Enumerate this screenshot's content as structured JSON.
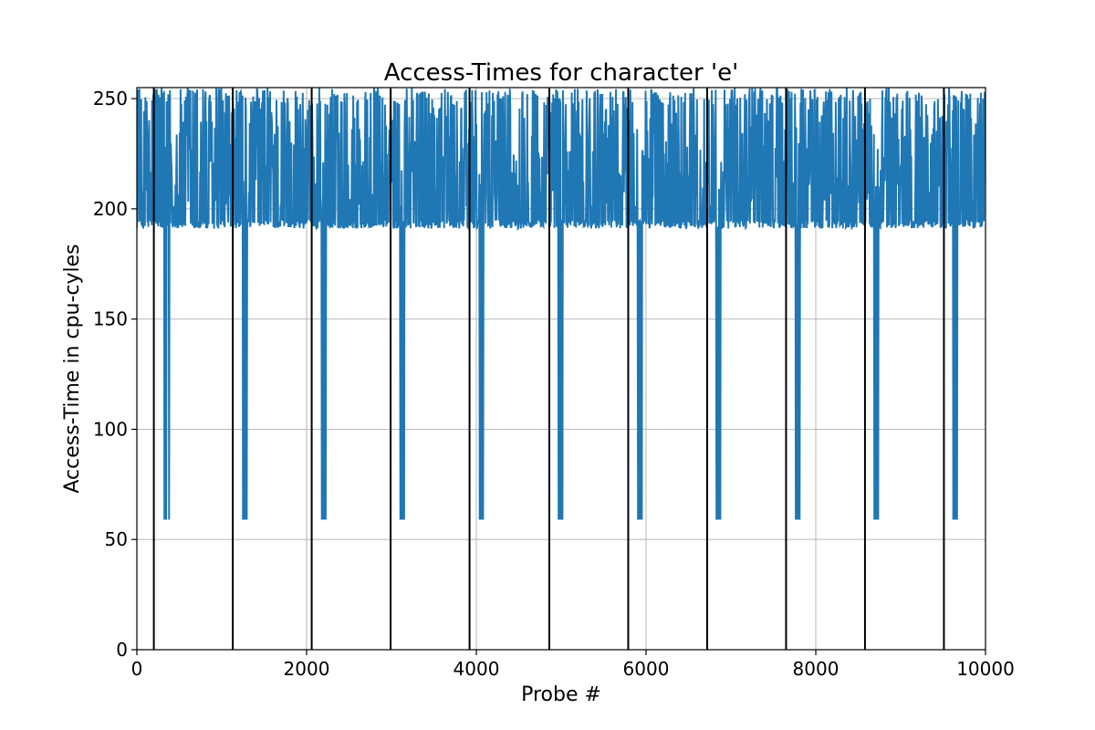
{
  "chart_data": {
    "type": "line",
    "title": "Access-Times for character 'e'",
    "xlabel": "Probe #",
    "ylabel": "Access-Time in cpu-cyles",
    "xlim": [
      0,
      10000
    ],
    "ylim": [
      0,
      255
    ],
    "x_ticks": [
      0,
      2000,
      4000,
      6000,
      8000,
      10000
    ],
    "y_ticks": [
      0,
      50,
      100,
      150,
      200,
      250
    ],
    "x_tick_labels": [
      "0",
      "2000",
      "4000",
      "6000",
      "8000",
      "10000"
    ],
    "y_tick_labels": [
      "0",
      "50",
      "100",
      "150",
      "200",
      "250"
    ],
    "grid": true,
    "legend": "none",
    "series": [
      {
        "style": "line",
        "color": "#1f77b4",
        "baseline_band": [
          190,
          255
        ],
        "typical_floor": 191,
        "fast_access_value": 59,
        "fast_access_dips_x": [
          [
            325,
            335,
            345,
            380
          ],
          [
            1250,
            1260,
            1275,
            1295
          ],
          [
            2180,
            2190,
            2205,
            2225
          ],
          [
            3105,
            3115,
            3130,
            3150
          ],
          [
            4040,
            4050,
            4060,
            4080
          ],
          [
            4970,
            4980,
            4995,
            5015
          ],
          [
            5905,
            5915,
            5930,
            5950
          ],
          [
            6830,
            6840,
            6855,
            6875
          ],
          [
            7765,
            7775,
            7790,
            7810
          ],
          [
            8690,
            8700,
            8715,
            8735
          ],
          [
            9620,
            9630,
            9645,
            9665
          ]
        ]
      },
      {
        "style": "vertical-lines",
        "color": "#000000",
        "x": [
          200,
          1130,
          2060,
          2990,
          3920,
          4860,
          5790,
          6720,
          7650,
          8580,
          9510
        ]
      }
    ]
  }
}
